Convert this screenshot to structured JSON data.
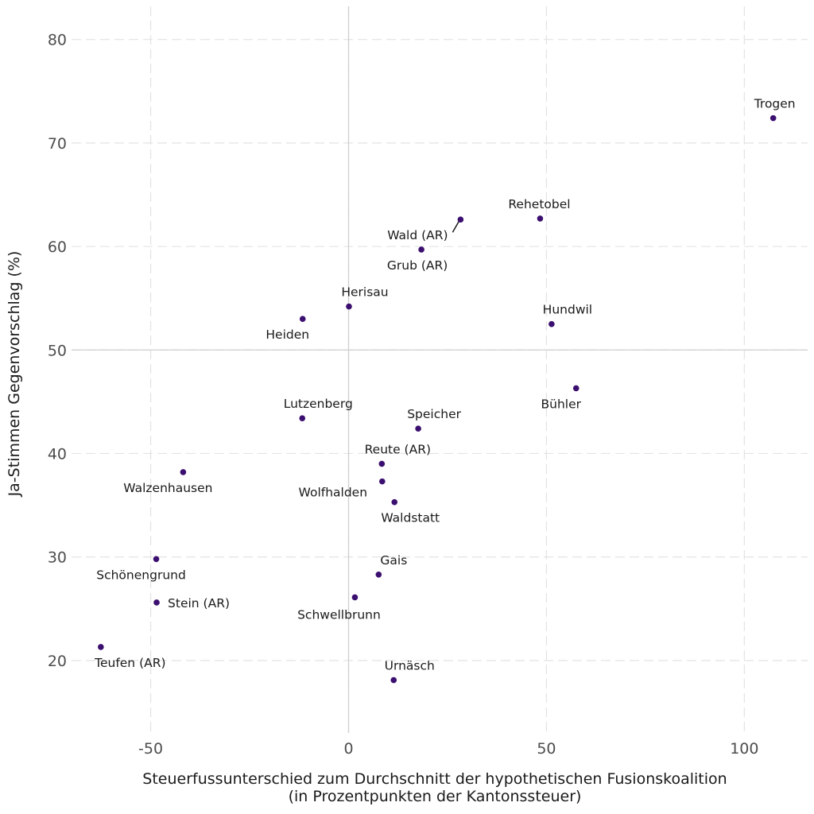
{
  "chart_data": {
    "type": "scatter",
    "xlabel": [
      "Steuerfussunterschied zum Durchschnitt der hypothetischen Fusionskoalition",
      "(in Prozentpunkten der Kantonssteuer)"
    ],
    "ylabel": "Ja-Stimmen Gegenvorschlag (%)",
    "xlim": [
      -70,
      116
    ],
    "ylim": [
      13,
      83.2
    ],
    "xticks": [
      -50,
      0,
      50,
      100
    ],
    "yticks": [
      20,
      30,
      40,
      50,
      60,
      70,
      80
    ],
    "reference_lines": {
      "x": 0,
      "y": 50
    },
    "grid": true,
    "point_color": "#3b0f6f",
    "points": [
      {
        "label": "Trogen",
        "x": 107.3,
        "y": 72.4
      },
      {
        "label": "Rehetobel",
        "x": 48.4,
        "y": 62.7
      },
      {
        "label": "Wald (AR)",
        "x": 28.3,
        "y": 62.6
      },
      {
        "label": "Grub (AR)",
        "x": 18.4,
        "y": 59.7
      },
      {
        "label": "Herisau",
        "x": 0.1,
        "y": 54.2
      },
      {
        "label": "Heiden",
        "x": -11.6,
        "y": 53.0
      },
      {
        "label": "Hundwil",
        "x": 51.3,
        "y": 52.5
      },
      {
        "label": "Bühler",
        "x": 57.5,
        "y": 46.3
      },
      {
        "label": "Lutzenberg",
        "x": -11.7,
        "y": 43.4
      },
      {
        "label": "Speicher",
        "x": 17.6,
        "y": 42.4
      },
      {
        "label": "Reute (AR)",
        "x": 8.4,
        "y": 39.0
      },
      {
        "label": "Walzenhausen",
        "x": -41.8,
        "y": 38.2
      },
      {
        "label": "Wolfhalden",
        "x": 8.5,
        "y": 37.3
      },
      {
        "label": "Waldstatt",
        "x": 11.6,
        "y": 35.3
      },
      {
        "label": "Schönengrund",
        "x": -48.6,
        "y": 29.8
      },
      {
        "label": "Gais",
        "x": 7.6,
        "y": 28.3
      },
      {
        "label": "Schwellbrunn",
        "x": 1.6,
        "y": 26.1
      },
      {
        "label": "Stein (AR)",
        "x": -48.5,
        "y": 25.6
      },
      {
        "label": "Teufen (AR)",
        "x": -62.6,
        "y": 21.3
      },
      {
        "label": "Urnäsch",
        "x": 11.4,
        "y": 18.1
      }
    ]
  }
}
